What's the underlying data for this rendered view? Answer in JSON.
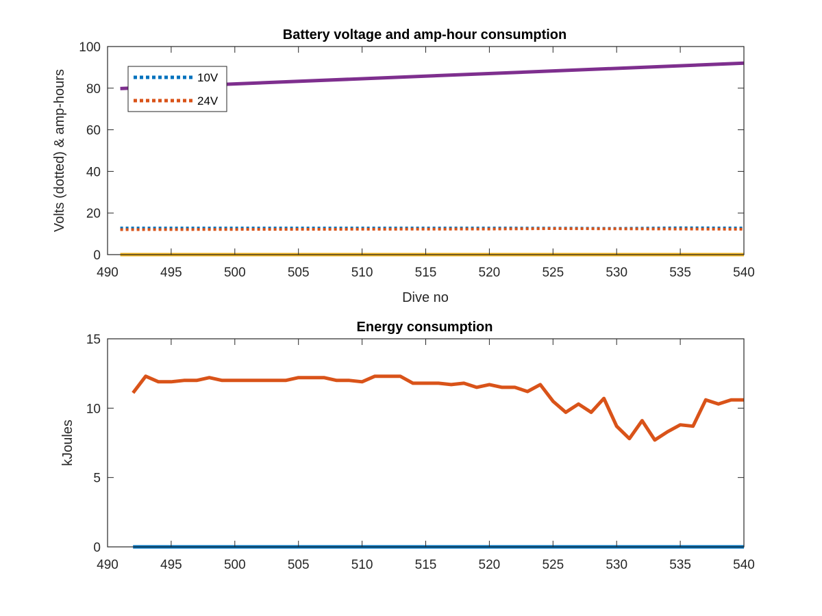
{
  "chart_data": [
    {
      "type": "line",
      "title": "Battery voltage and amp-hour consumption",
      "xlabel": "Dive no",
      "ylabel": "Volts (dotted) & amp-hours",
      "xlim": [
        490,
        540
      ],
      "ylim": [
        0,
        100
      ],
      "xticks": [
        490,
        495,
        500,
        505,
        510,
        515,
        520,
        525,
        530,
        535,
        540
      ],
      "yticks": [
        0,
        20,
        40,
        60,
        80,
        100
      ],
      "grid": false,
      "legend_position": "top-left",
      "legend": [
        "10V",
        "24V"
      ],
      "series": [
        {
          "name": "10V",
          "style": "dotted",
          "color": "#0072BD",
          "x": [
            491,
            500,
            510,
            520,
            527,
            530,
            535,
            540
          ],
          "y": [
            12.8,
            12.8,
            12.8,
            12.8,
            12.7,
            12.6,
            12.9,
            12.8
          ]
        },
        {
          "name": "24V",
          "style": "dotted",
          "color": "#D95319",
          "x": [
            491,
            500,
            510,
            520,
            525,
            530,
            535,
            540
          ],
          "y": [
            12.0,
            12.1,
            12.2,
            12.3,
            12.5,
            12.4,
            12.3,
            12.2
          ]
        },
        {
          "style": "solid",
          "color": "#7E2F8E",
          "x": [
            491,
            540
          ],
          "y": [
            79.8,
            92.0
          ]
        },
        {
          "style": "solid",
          "color": "#EDB120",
          "x": [
            491,
            540
          ],
          "y": [
            0,
            0
          ]
        }
      ]
    },
    {
      "type": "line",
      "title": "Energy consumption",
      "xlabel": "",
      "ylabel": "kJoules",
      "xlim": [
        490,
        540
      ],
      "ylim": [
        0,
        15
      ],
      "xticks": [
        490,
        495,
        500,
        505,
        510,
        515,
        520,
        525,
        530,
        535,
        540
      ],
      "yticks": [
        0,
        5,
        10,
        15
      ],
      "grid": false,
      "series": [
        {
          "style": "solid",
          "color": "#D95319",
          "x": [
            492,
            493,
            494,
            495,
            496,
            497,
            498,
            499,
            500,
            501,
            502,
            503,
            504,
            505,
            506,
            507,
            508,
            509,
            510,
            511,
            512,
            513,
            514,
            515,
            516,
            517,
            518,
            519,
            520,
            521,
            522,
            523,
            524,
            525,
            526,
            527,
            528,
            529,
            530,
            531,
            532,
            533,
            534,
            535,
            536,
            537,
            538,
            539,
            540
          ],
          "y": [
            11.1,
            12.3,
            11.9,
            11.9,
            12.0,
            12.0,
            12.2,
            12.0,
            12.0,
            12.0,
            12.0,
            12.0,
            12.0,
            12.2,
            12.2,
            12.2,
            12.0,
            12.0,
            11.9,
            12.3,
            12.3,
            12.3,
            11.8,
            11.8,
            11.8,
            11.7,
            11.8,
            11.5,
            11.7,
            11.5,
            11.5,
            11.2,
            11.7,
            10.5,
            9.7,
            10.3,
            9.7,
            10.7,
            8.7,
            7.8,
            9.1,
            7.7,
            8.3,
            8.8,
            8.7,
            10.6,
            10.3,
            10.6,
            10.6
          ]
        },
        {
          "style": "solid",
          "color": "#0072BD",
          "x": [
            492,
            540
          ],
          "y": [
            0,
            0
          ]
        }
      ]
    }
  ]
}
